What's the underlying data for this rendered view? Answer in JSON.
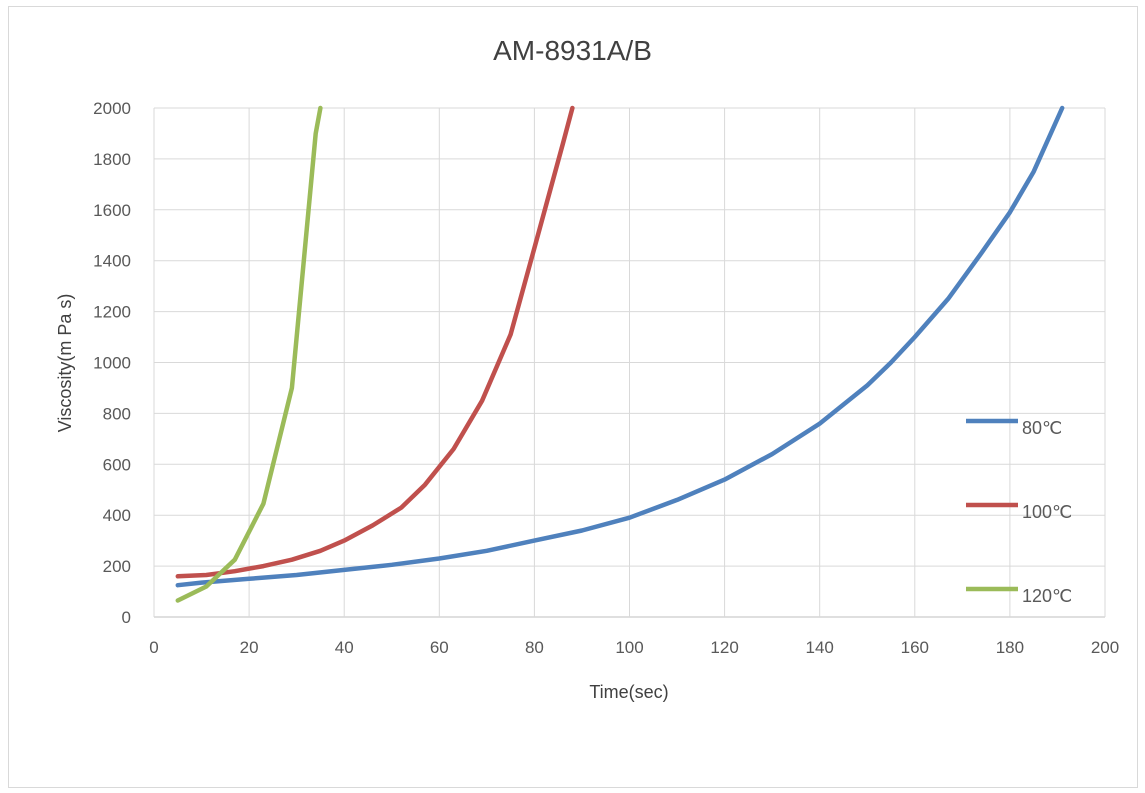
{
  "chart_data": {
    "type": "line",
    "title": "AM-8931A/B",
    "xlabel": "Time(sec)",
    "ylabel": "Viscosity(m Pa s)",
    "xlim": [
      0,
      200
    ],
    "ylim": [
      0,
      2000
    ],
    "xticks": [
      0,
      20,
      40,
      60,
      80,
      100,
      120,
      140,
      160,
      180,
      200
    ],
    "yticks": [
      0,
      200,
      400,
      600,
      800,
      1000,
      1200,
      1400,
      1600,
      1800,
      2000
    ],
    "grid": true,
    "legend_position": "right",
    "series": [
      {
        "name": "80℃",
        "color": "#4f81bd",
        "x": [
          5,
          10,
          20,
          30,
          40,
          50,
          60,
          70,
          80,
          90,
          100,
          110,
          120,
          130,
          140,
          150,
          155,
          160,
          167,
          174,
          180,
          185,
          191
        ],
        "y": [
          125,
          135,
          150,
          165,
          185,
          205,
          230,
          260,
          300,
          340,
          390,
          460,
          540,
          640,
          760,
          910,
          1000,
          1100,
          1250,
          1430,
          1590,
          1750,
          2000
        ]
      },
      {
        "name": "100℃",
        "color": "#c0504d",
        "x": [
          5,
          11,
          17,
          23,
          29,
          35,
          40,
          46,
          52,
          57,
          63,
          69,
          75,
          80,
          86,
          88
        ],
        "y": [
          160,
          165,
          180,
          200,
          225,
          260,
          300,
          360,
          430,
          520,
          660,
          850,
          1110,
          1450,
          1860,
          2000
        ]
      },
      {
        "name": "120℃",
        "color": "#9bbb59",
        "x": [
          5,
          11,
          17,
          23,
          29,
          34,
          35
        ],
        "y": [
          65,
          120,
          225,
          445,
          900,
          1900,
          2000
        ]
      }
    ]
  }
}
